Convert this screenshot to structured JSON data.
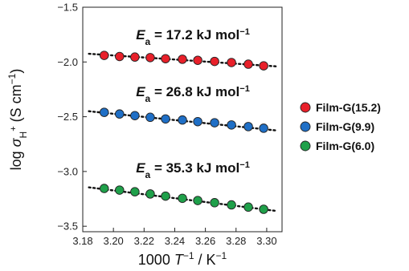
{
  "chart_data": {
    "type": "scatter",
    "xlabel": {
      "pre": "1000 ",
      "var": "T",
      "sup": "−1",
      "post": " / K",
      "sup2": "−1"
    },
    "ylabel": {
      "pre": "log ",
      "var": "σ",
      "sub": "H",
      "subsup": "+",
      "post": " (S cm",
      "sup": "−1",
      "end": ")"
    },
    "xlim": [
      3.18,
      3.31
    ],
    "ylim": [
      -3.55,
      -1.5
    ],
    "xticks": [
      "3.18",
      "3.20",
      "3.22",
      "3.24",
      "3.26",
      "3.28",
      "3.30"
    ],
    "yticks": [
      "−1.5",
      "−2.0",
      "−2.5",
      "−3.0",
      "−3.5"
    ],
    "x": [
      3.194,
      3.204,
      3.214,
      3.224,
      3.234,
      3.245,
      3.255,
      3.266,
      3.277,
      3.288,
      3.298
    ],
    "grid": false,
    "legend_position": "right",
    "series": [
      {
        "name": "Film-G(15.2)",
        "color": "#e8202a",
        "values": [
          -1.94,
          -1.95,
          -1.955,
          -1.96,
          -1.97,
          -1.975,
          -1.985,
          -1.995,
          -2.005,
          -2.02,
          -2.035
        ],
        "fit": [
          -1.925,
          -2.04
        ],
        "annotation": {
          "var": "E",
          "sub": "a",
          "text": " = 17.2 kJ mol",
          "sup": "−1"
        }
      },
      {
        "name": "Film-G(9.9)",
        "color": "#1f6fc6",
        "values": [
          -2.46,
          -2.475,
          -2.49,
          -2.505,
          -2.52,
          -2.53,
          -2.545,
          -2.555,
          -2.575,
          -2.59,
          -2.605
        ],
        "fit": [
          -2.45,
          -2.625
        ],
        "annotation": {
          "var": "E",
          "sub": "a",
          "text": " = 26.8 kJ mol",
          "sup": "−1"
        }
      },
      {
        "name": "Film-G(6.0)",
        "color": "#1fa04a",
        "values": [
          -3.155,
          -3.17,
          -3.185,
          -3.205,
          -3.225,
          -3.245,
          -3.265,
          -3.285,
          -3.305,
          -3.325,
          -3.345
        ],
        "fit": [
          -3.145,
          -3.36
        ],
        "annotation": {
          "var": "E",
          "sub": "a",
          "text": " = 35.3 kJ mol",
          "sup": "−1"
        }
      }
    ]
  }
}
